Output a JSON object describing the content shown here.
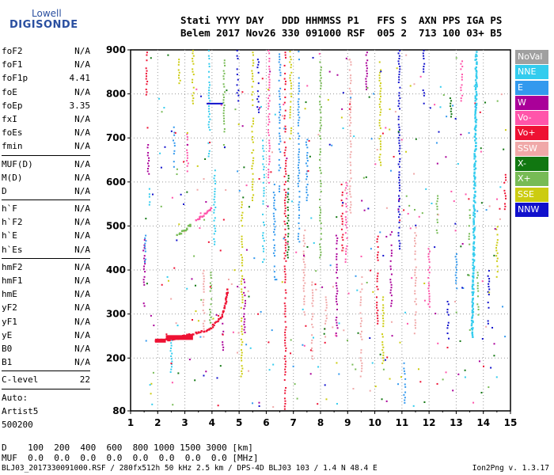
{
  "logo": {
    "line1": "Lowell",
    "line2": "DIGISONDE"
  },
  "header": {
    "line1": "Stati YYYY DAY   DDD HHMMSS P1   FFS S  AXN PPS IGA PS",
    "line2": "Belem 2017 Nov26 330 091000 RSF  005 2  713 100 03+ B5"
  },
  "params": {
    "group1": [
      {
        "label": "foF2",
        "value": "N/A"
      },
      {
        "label": "foF1",
        "value": "N/A"
      },
      {
        "label": "foF1p",
        "value": "4.41"
      },
      {
        "label": "foE",
        "value": "N/A"
      },
      {
        "label": "foEp",
        "value": "3.35"
      },
      {
        "label": "fxI",
        "value": "N/A"
      },
      {
        "label": "foEs",
        "value": "N/A"
      },
      {
        "label": "fmin",
        "value": "N/A"
      }
    ],
    "group2": [
      {
        "label": "MUF(D)",
        "value": "N/A"
      },
      {
        "label": "M(D)",
        "value": "N/A"
      },
      {
        "label": "D",
        "value": "N/A"
      }
    ],
    "group3": [
      {
        "label": "h`F",
        "value": "N/A"
      },
      {
        "label": "h`F2",
        "value": "N/A"
      },
      {
        "label": "h`E",
        "value": "N/A"
      },
      {
        "label": "h`Es",
        "value": "N/A"
      }
    ],
    "group4": [
      {
        "label": "hmF2",
        "value": "N/A"
      },
      {
        "label": "hmF1",
        "value": "N/A"
      },
      {
        "label": "hmE",
        "value": "N/A"
      },
      {
        "label": "yF2",
        "value": "N/A"
      },
      {
        "label": "yF1",
        "value": "N/A"
      },
      {
        "label": "yE",
        "value": "N/A"
      },
      {
        "label": "B0",
        "value": "N/A"
      },
      {
        "label": "B1",
        "value": "N/A"
      }
    ],
    "clevel": {
      "label": "C-level",
      "value": "22"
    },
    "auto": [
      "Auto:",
      "Artist5",
      "500200"
    ]
  },
  "legend": [
    {
      "label": "NoVal",
      "color": "#a0a0a0"
    },
    {
      "label": "NNE",
      "color": "#33ccee"
    },
    {
      "label": "E",
      "color": "#3399ee"
    },
    {
      "label": "W",
      "color": "#aa0099"
    },
    {
      "label": "Vo-",
      "color": "#ff55aa"
    },
    {
      "label": "Vo+",
      "color": "#ee1133"
    },
    {
      "label": "SSW",
      "color": "#f0a8a8"
    },
    {
      "label": "X-",
      "color": "#117711"
    },
    {
      "label": "X+",
      "color": "#77bb55"
    },
    {
      "label": "SSE",
      "color": "#cccc11"
    },
    {
      "label": "NNW",
      "color": "#1111cc"
    }
  ],
  "footer": {
    "line1": "D    100  200  400  600  800 1000 1500 3000 [km]",
    "line2": "MUF  0.0  0.0  0.0  0.0  0.0  0.0  0.0  0.0 [MHz]"
  },
  "bottom": {
    "left": "BLJ03_2017330091000.RSF / 280fx512h 50 kHz 2.5 km / DPS-4D BLJ03 103 / 1.4 N 48.4 E",
    "right": "Ion2Png v. 1.3.17"
  },
  "chart_data": {
    "type": "scatter",
    "x_ticks": [
      1,
      2,
      3,
      4,
      5,
      6,
      7,
      8,
      9,
      10,
      11,
      12,
      13,
      14,
      15
    ],
    "y_ticks": [
      80,
      200,
      300,
      400,
      500,
      600,
      700,
      800,
      900
    ],
    "xlim": [
      1,
      15
    ],
    "ylim": [
      80,
      900
    ],
    "grid": true,
    "series": [
      {
        "name": "Vo+",
        "color": "#ee1133",
        "trace": [
          [
            1.9,
            240
          ],
          [
            2.2,
            242
          ],
          [
            2.5,
            246
          ],
          [
            2.8,
            250
          ],
          [
            3.0,
            253
          ],
          [
            3.3,
            257
          ],
          [
            3.6,
            262
          ],
          [
            3.9,
            270
          ],
          [
            4.1,
            280
          ],
          [
            4.3,
            295
          ],
          [
            4.45,
            320
          ],
          [
            4.5,
            340
          ],
          [
            4.55,
            360
          ]
        ]
      },
      {
        "name": "X+",
        "color": "#77bb55",
        "trace": [
          [
            2.7,
            480
          ],
          [
            2.9,
            490
          ],
          [
            3.1,
            500
          ],
          [
            3.2,
            505
          ]
        ]
      },
      {
        "name": "Vo-",
        "color": "#ff55aa",
        "trace": [
          [
            3.4,
            515
          ],
          [
            3.6,
            525
          ],
          [
            3.8,
            535
          ],
          [
            4.0,
            545
          ]
        ]
      },
      {
        "name": "NNE",
        "color": "#33ccee",
        "trace": [
          [
            13.55,
            250
          ],
          [
            13.6,
            400
          ],
          [
            13.65,
            600
          ],
          [
            13.7,
            800
          ],
          [
            13.7,
            900
          ]
        ]
      }
    ]
  }
}
